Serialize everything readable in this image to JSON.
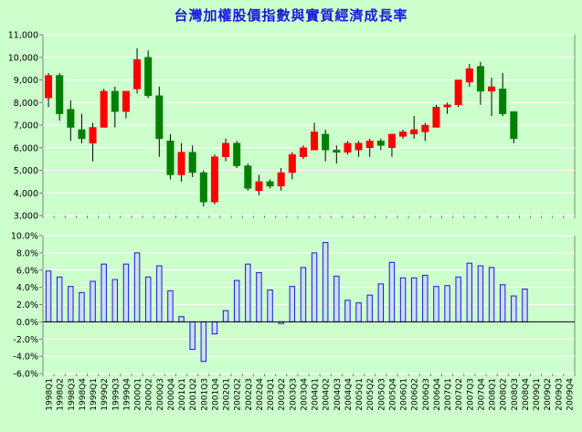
{
  "chart_data": [
    {
      "type": "candlestick",
      "title": "台灣加權股價指數與實質經濟成長率",
      "ylim": [
        3000,
        11000
      ],
      "yticks": [
        3000,
        4000,
        5000,
        6000,
        7000,
        8000,
        9000,
        10000,
        11000
      ],
      "ytick_labels": [
        "3,000",
        "4,000",
        "5,000",
        "6,000",
        "7,000",
        "8,000",
        "9,000",
        "10,000",
        "11,000"
      ],
      "grid": true,
      "up_color": "#ff0000",
      "down_color": "#008000",
      "categories": [
        "1998Q1",
        "1998Q2",
        "1998Q3",
        "1998Q4",
        "1999Q1",
        "1999Q2",
        "1999Q3",
        "1999Q4",
        "2000Q1",
        "2000Q2",
        "2000Q3",
        "2000Q4",
        "2001Q1",
        "2001Q2",
        "2001Q3",
        "2001Q4",
        "2002Q1",
        "2002Q2",
        "2002Q3",
        "2002Q4",
        "2003Q1",
        "2003Q2",
        "2003Q3",
        "2003Q4",
        "2004Q1",
        "2004Q2",
        "2004Q3",
        "2004Q4",
        "2005Q1",
        "2005Q2",
        "2005Q3",
        "2005Q4",
        "2006Q1",
        "2006Q2",
        "2006Q3",
        "2006Q4",
        "2007Q1",
        "2007Q2",
        "2007Q3",
        "2007Q4",
        "2008Q1",
        "2008Q2",
        "2008Q3",
        "2008Q4",
        "2009Q1",
        "2009Q2",
        "2009Q3",
        "2009Q4"
      ],
      "ohlc": [
        {
          "open": 8200,
          "high": 9300,
          "low": 7800,
          "close": 9200
        },
        {
          "open": 9200,
          "high": 9300,
          "low": 7200,
          "close": 7500
        },
        {
          "open": 7700,
          "high": 8100,
          "low": 6300,
          "close": 6900
        },
        {
          "open": 6800,
          "high": 7500,
          "low": 6200,
          "close": 6400
        },
        {
          "open": 6200,
          "high": 7100,
          "low": 5400,
          "close": 6900
        },
        {
          "open": 6900,
          "high": 8600,
          "low": 6900,
          "close": 8500
        },
        {
          "open": 8500,
          "high": 8700,
          "low": 6900,
          "close": 7600
        },
        {
          "open": 7600,
          "high": 8500,
          "low": 7300,
          "close": 8500
        },
        {
          "open": 8600,
          "high": 10400,
          "low": 8400,
          "close": 9900
        },
        {
          "open": 10000,
          "high": 10300,
          "low": 8200,
          "close": 8300
        },
        {
          "open": 8300,
          "high": 8700,
          "low": 5600,
          "close": 6400
        },
        {
          "open": 6300,
          "high": 6600,
          "low": 4600,
          "close": 4800
        },
        {
          "open": 4800,
          "high": 6200,
          "low": 4500,
          "close": 5800
        },
        {
          "open": 5800,
          "high": 6100,
          "low": 4700,
          "close": 4900
        },
        {
          "open": 4900,
          "high": 5000,
          "low": 3400,
          "close": 3600
        },
        {
          "open": 3600,
          "high": 5700,
          "low": 3500,
          "close": 5600
        },
        {
          "open": 5600,
          "high": 6400,
          "low": 5400,
          "close": 6200
        },
        {
          "open": 6200,
          "high": 6300,
          "low": 5100,
          "close": 5200
        },
        {
          "open": 5200,
          "high": 5300,
          "low": 4100,
          "close": 4200
        },
        {
          "open": 4100,
          "high": 4800,
          "low": 3900,
          "close": 4500
        },
        {
          "open": 4500,
          "high": 4600,
          "low": 4200,
          "close": 4300
        },
        {
          "open": 4300,
          "high": 5100,
          "low": 4100,
          "close": 4900
        },
        {
          "open": 4900,
          "high": 5800,
          "low": 4600,
          "close": 5700
        },
        {
          "open": 5600,
          "high": 6100,
          "low": 5500,
          "close": 6000
        },
        {
          "open": 5900,
          "high": 7100,
          "low": 5900,
          "close": 6700
        },
        {
          "open": 6600,
          "high": 6800,
          "low": 5400,
          "close": 5900
        },
        {
          "open": 5900,
          "high": 6100,
          "low": 5300,
          "close": 5800
        },
        {
          "open": 5800,
          "high": 6300,
          "low": 5700,
          "close": 6200
        },
        {
          "open": 5900,
          "high": 6300,
          "low": 5600,
          "close": 6200
        },
        {
          "open": 6000,
          "high": 6400,
          "low": 5600,
          "close": 6300
        },
        {
          "open": 6300,
          "high": 6400,
          "low": 5900,
          "close": 6100
        },
        {
          "open": 6000,
          "high": 6600,
          "low": 5600,
          "close": 6600
        },
        {
          "open": 6500,
          "high": 6800,
          "low": 6400,
          "close": 6700
        },
        {
          "open": 6600,
          "high": 7400,
          "low": 6400,
          "close": 6800
        },
        {
          "open": 6700,
          "high": 7100,
          "low": 6300,
          "close": 7000
        },
        {
          "open": 6900,
          "high": 7900,
          "low": 6900,
          "close": 7800
        },
        {
          "open": 7800,
          "high": 8000,
          "low": 7500,
          "close": 7900
        },
        {
          "open": 7900,
          "high": 9000,
          "low": 7800,
          "close": 9000
        },
        {
          "open": 8900,
          "high": 9700,
          "low": 8700,
          "close": 9500
        },
        {
          "open": 9600,
          "high": 9800,
          "low": 7900,
          "close": 8500
        },
        {
          "open": 8500,
          "high": 9100,
          "low": 7400,
          "close": 8700
        },
        {
          "open": 8600,
          "high": 9300,
          "low": 7400,
          "close": 7500
        },
        {
          "open": 7600,
          "high": 7600,
          "low": 6200,
          "close": 6400
        },
        null,
        null,
        null,
        null,
        null
      ]
    },
    {
      "type": "bar",
      "ylim": [
        -6,
        10
      ],
      "yticks": [
        -6,
        -4,
        -2,
        0,
        2,
        4,
        6,
        8,
        10
      ],
      "ytick_labels": [
        "-6.0%",
        "-4.0%",
        "-2.0%",
        "0.0%",
        "2.0%",
        "4.0%",
        "6.0%",
        "8.0%",
        "10.0%"
      ],
      "grid": true,
      "bar_color": "#ccddff",
      "bar_edge": "#1a1acc",
      "categories": [
        "1998Q1",
        "1998Q2",
        "1998Q3",
        "1998Q4",
        "1999Q1",
        "1999Q2",
        "1999Q3",
        "1999Q4",
        "2000Q1",
        "2000Q2",
        "2000Q3",
        "2000Q4",
        "2001Q1",
        "2001Q2",
        "2001Q3",
        "2001Q4",
        "2002Q1",
        "2002Q2",
        "2002Q3",
        "2002Q4",
        "2003Q1",
        "2003Q2",
        "2003Q3",
        "2003Q4",
        "2004Q1",
        "2004Q2",
        "2004Q3",
        "2004Q4",
        "2005Q1",
        "2005Q2",
        "2005Q3",
        "2005Q4",
        "2006Q1",
        "2006Q2",
        "2006Q3",
        "2006Q4",
        "2007Q1",
        "2007Q2",
        "2007Q3",
        "2007Q4",
        "2008Q1",
        "2008Q2",
        "2008Q3",
        "2008Q4",
        "2009Q1",
        "2009Q2",
        "2009Q3",
        "2009Q4"
      ],
      "values": [
        5.9,
        5.2,
        4.1,
        3.4,
        4.7,
        6.7,
        4.9,
        6.7,
        8.0,
        5.2,
        6.5,
        3.6,
        0.6,
        -3.2,
        -4.6,
        -1.4,
        1.3,
        4.8,
        6.7,
        5.7,
        3.7,
        -0.2,
        4.1,
        6.3,
        8.0,
        9.2,
        5.3,
        2.5,
        2.2,
        3.1,
        4.4,
        6.9,
        5.1,
        5.1,
        5.4,
        4.1,
        4.2,
        5.2,
        6.8,
        6.5,
        6.3,
        4.3,
        3.0,
        3.8,
        null,
        null,
        null,
        null
      ]
    }
  ]
}
